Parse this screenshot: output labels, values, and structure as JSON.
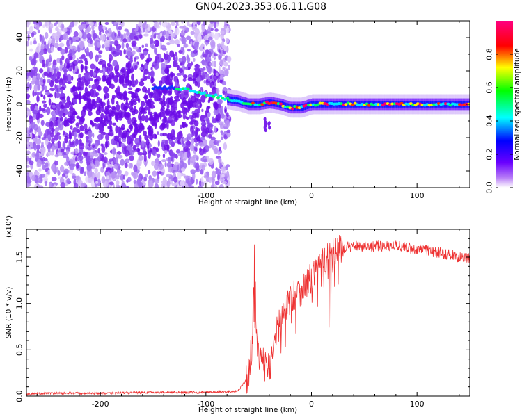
{
  "title": "GN04.2023.353.06.11.G08",
  "chart_data": [
    {
      "type": "heatmap",
      "xlabel": "Height of straight line (km)",
      "ylabel": "Frequency (Hz)",
      "xlim": [
        -270,
        150
      ],
      "ylim": [
        -50,
        50
      ],
      "xticks": [
        -200,
        -100,
        0,
        100
      ],
      "yticks": [
        -40,
        -20,
        0,
        20,
        40
      ],
      "colorbar": {
        "label": "Normalized spectral amplitude",
        "range": [
          0.0,
          1.0
        ],
        "ticks": [
          0.0,
          0.2,
          0.4,
          0.6,
          0.8
        ],
        "colormap": [
          "#ffffff",
          "#8a2be2",
          "#0000ff",
          "#00ffff",
          "#00ff00",
          "#ffff00",
          "#ff0000",
          "#ff0066"
        ]
      },
      "trace": {
        "x": [
          -150,
          -130,
          -110,
          -100,
          -90,
          -80,
          -70,
          -60,
          -50,
          -40,
          -30,
          -20,
          -10,
          0,
          50,
          100,
          150
        ],
        "y": [
          10,
          10,
          8,
          6,
          5,
          3,
          2,
          0,
          0,
          1,
          0,
          -2,
          -2,
          0,
          0,
          0,
          0
        ]
      },
      "noise_region_x": [
        -270,
        -78
      ]
    },
    {
      "type": "line",
      "xlabel": "Height of straight line (km)",
      "ylabel": "SNR (10 * v/v)",
      "y_scale_label": "(x10⁴)",
      "xlim": [
        -270,
        150
      ],
      "ylim": [
        0.0,
        1.8
      ],
      "xticks": [
        -200,
        -100,
        0,
        100
      ],
      "yticks": [
        0.0,
        0.5,
        1.0,
        1.5
      ],
      "color": "#ee3333",
      "series": [
        {
          "x": [
            -270,
            -250,
            -200,
            -150,
            -100,
            -70,
            -60,
            -56,
            -54,
            -52,
            -50,
            -46,
            -40,
            -36,
            -30,
            -25,
            -20,
            -15,
            -10,
            -5,
            0,
            5,
            10,
            15,
            20,
            25,
            30,
            40,
            50,
            60,
            70,
            80,
            90,
            100,
            110,
            120,
            130,
            140,
            150
          ],
          "y": [
            0.02,
            0.03,
            0.03,
            0.04,
            0.04,
            0.05,
            0.2,
            0.6,
            1.6,
            0.55,
            0.4,
            0.35,
            0.3,
            0.55,
            0.8,
            0.95,
            1.05,
            1.1,
            1.15,
            1.2,
            1.28,
            1.38,
            1.43,
            1.48,
            1.55,
            1.58,
            1.6,
            1.62,
            1.62,
            1.62,
            1.62,
            1.63,
            1.6,
            1.58,
            1.57,
            1.55,
            1.53,
            1.5,
            1.48
          ]
        }
      ]
    }
  ]
}
